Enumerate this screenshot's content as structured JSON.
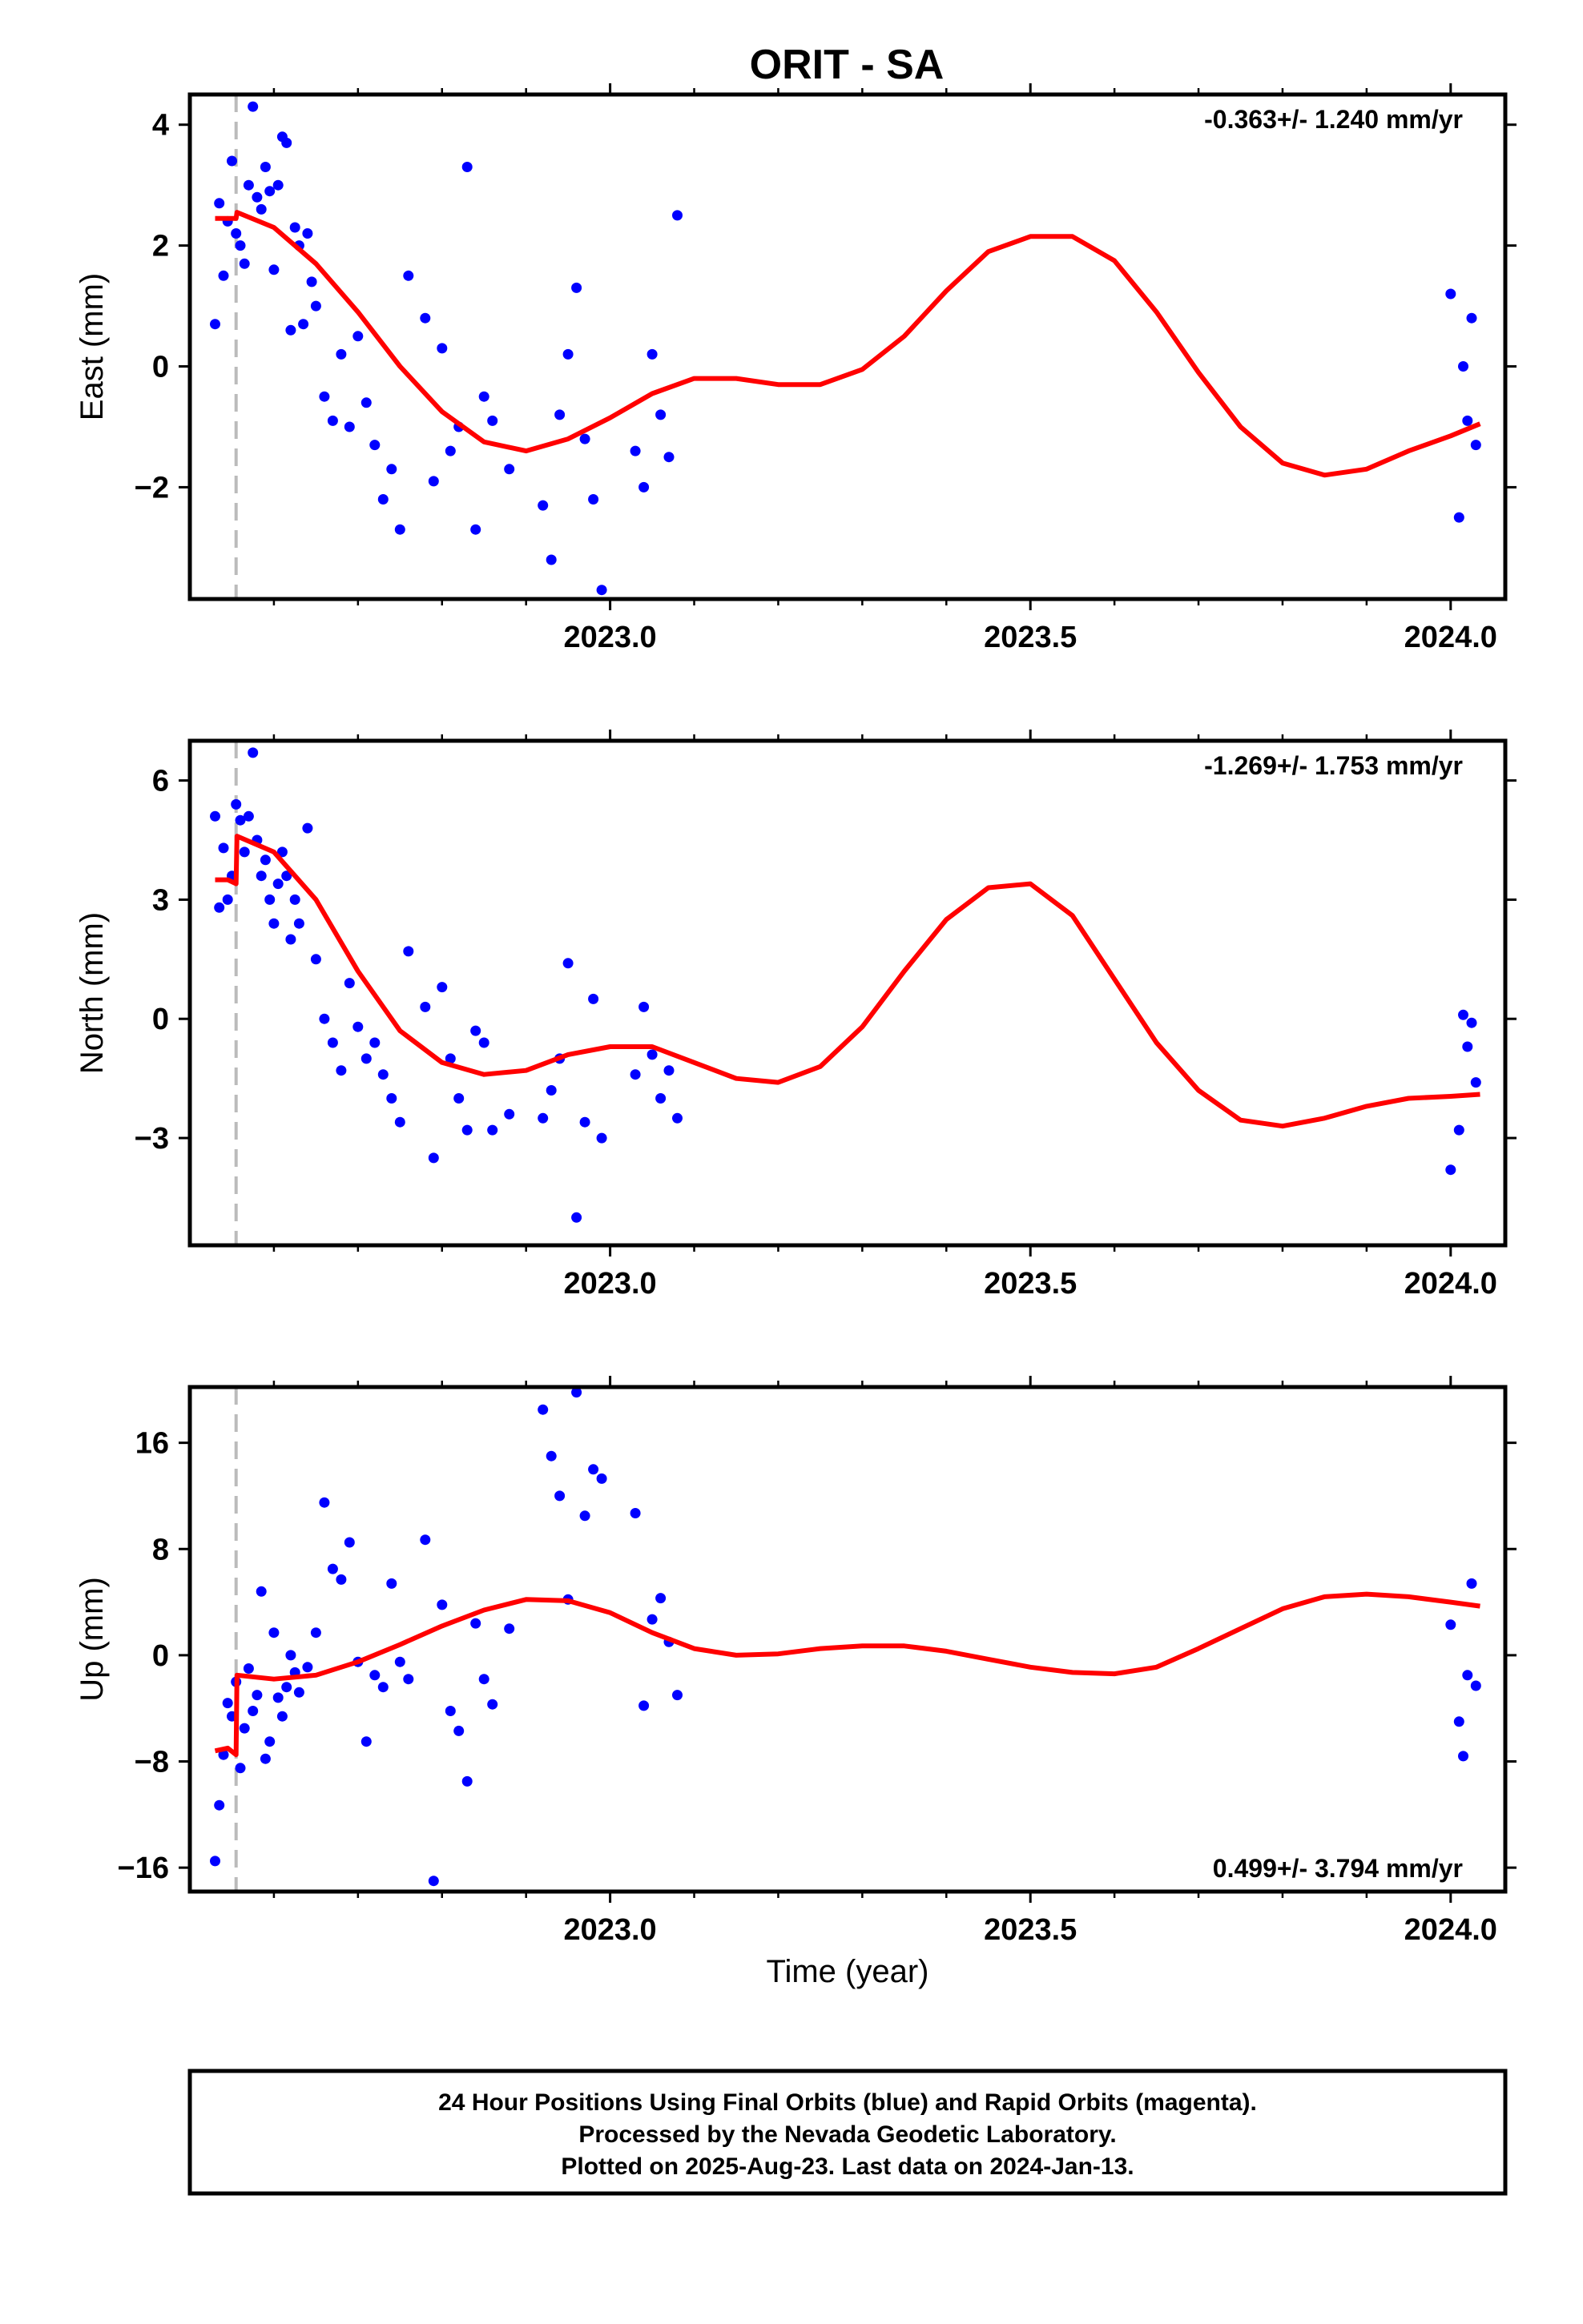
{
  "chart_data": {
    "type": "scatter",
    "title": "ORIT - SA",
    "xlabel": "Time (year)",
    "xlim": [
      2022.5,
      2024.065
    ],
    "x_ticks": [
      "2023.0",
      "2023.5",
      "2024.0"
    ],
    "x_tick_values": [
      2023.0,
      2023.5,
      2024.0
    ],
    "equipment_change_epoch": 2022.555,
    "colors": {
      "points": "#0000ff",
      "model": "#ff0000",
      "dashed": "#bbbbbb",
      "frame": "#000000"
    },
    "footer": [
      "24 Hour Positions Using Final Orbits (blue) and Rapid Orbits (magenta).",
      "Processed by the Nevada Geodetic Laboratory.",
      "Plotted on 2025-Aug-23. Last data on 2024-Jan-13."
    ],
    "panels": [
      {
        "ylabel": "East (mm)",
        "ylim": [
          -3.85,
          4.5
        ],
        "y_ticks": [
          4,
          2,
          0,
          -2
        ],
        "y_tick_labels": [
          "4",
          "2",
          "0",
          "−2"
        ],
        "rate_text": "-0.363+/- 1.240 mm/yr",
        "rate_position": "top-right",
        "series": [
          {
            "name": "Final Orbits",
            "style": "points",
            "x": [
              2022.53,
              2022.535,
              2022.54,
              2022.545,
              2022.55,
              2022.555,
              2022.56,
              2022.565,
              2022.57,
              2022.575,
              2022.58,
              2022.585,
              2022.59,
              2022.595,
              2022.6,
              2022.605,
              2022.61,
              2022.615,
              2022.62,
              2022.625,
              2022.63,
              2022.635,
              2022.64,
              2022.645,
              2022.65,
              2022.66,
              2022.67,
              2022.68,
              2022.69,
              2022.7,
              2022.71,
              2022.72,
              2022.73,
              2022.74,
              2022.75,
              2022.76,
              2022.78,
              2022.79,
              2022.8,
              2022.81,
              2022.82,
              2022.83,
              2022.84,
              2022.85,
              2022.86,
              2022.88,
              2022.92,
              2022.93,
              2022.94,
              2022.95,
              2022.96,
              2022.97,
              2022.98,
              2022.99,
              2023.03,
              2023.04,
              2023.05,
              2023.06,
              2023.07,
              2023.08,
              2024.0,
              2024.01,
              2024.015,
              2024.02,
              2024.025,
              2024.03
            ],
            "y": [
              0.7,
              2.7,
              1.5,
              2.4,
              3.4,
              2.2,
              2.0,
              1.7,
              3.0,
              4.3,
              2.8,
              2.6,
              3.3,
              2.9,
              1.6,
              3.0,
              3.8,
              3.7,
              0.6,
              2.3,
              2.0,
              0.7,
              2.2,
              1.4,
              1.0,
              -0.5,
              -0.9,
              0.2,
              -1.0,
              0.5,
              -0.6,
              -1.3,
              -2.2,
              -1.7,
              -2.7,
              1.5,
              0.8,
              -1.9,
              0.3,
              -1.4,
              -1.0,
              3.3,
              -2.7,
              -0.5,
              -0.9,
              -1.7,
              -2.3,
              -3.2,
              -0.8,
              0.2,
              1.3,
              -1.2,
              -2.2,
              -3.7,
              -1.4,
              -2.0,
              0.2,
              -0.8,
              -1.5,
              2.5,
              1.2,
              -2.5,
              0.0,
              -0.9,
              0.8,
              -1.3
            ]
          },
          {
            "name": "Model",
            "style": "line",
            "x": [
              2022.53,
              2022.555,
              2022.556,
              2022.6,
              2022.65,
              2022.7,
              2022.75,
              2022.8,
              2022.85,
              2022.9,
              2022.95,
              2023.0,
              2023.05,
              2023.1,
              2023.15,
              2023.2,
              2023.25,
              2023.3,
              2023.35,
              2023.4,
              2023.45,
              2023.5,
              2023.55,
              2023.6,
              2023.65,
              2023.7,
              2023.75,
              2023.8,
              2023.85,
              2023.9,
              2023.95,
              2024.0,
              2024.035
            ],
            "y": [
              2.45,
              2.45,
              2.55,
              2.3,
              1.7,
              0.9,
              0.0,
              -0.75,
              -1.25,
              -1.4,
              -1.2,
              -0.85,
              -0.45,
              -0.2,
              -0.2,
              -0.3,
              -0.3,
              -0.05,
              0.5,
              1.25,
              1.9,
              2.15,
              2.15,
              1.75,
              0.9,
              -0.1,
              -1.0,
              -1.6,
              -1.8,
              -1.7,
              -1.4,
              -1.15,
              -0.95
            ]
          }
        ]
      },
      {
        "ylabel": "North (mm)",
        "ylim": [
          -5.7,
          7.0
        ],
        "y_ticks": [
          6,
          3,
          0,
          -3
        ],
        "y_tick_labels": [
          "6",
          "3",
          "0",
          "−3"
        ],
        "rate_text": "-1.269+/- 1.753 mm/yr",
        "rate_position": "top-right",
        "series": [
          {
            "name": "Final Orbits",
            "style": "points",
            "x": [
              2022.53,
              2022.535,
              2022.54,
              2022.545,
              2022.55,
              2022.555,
              2022.56,
              2022.565,
              2022.57,
              2022.575,
              2022.58,
              2022.585,
              2022.59,
              2022.595,
              2022.6,
              2022.605,
              2022.61,
              2022.615,
              2022.62,
              2022.625,
              2022.63,
              2022.64,
              2022.65,
              2022.66,
              2022.67,
              2022.68,
              2022.69,
              2022.7,
              2022.71,
              2022.72,
              2022.73,
              2022.74,
              2022.75,
              2022.76,
              2022.78,
              2022.79,
              2022.8,
              2022.81,
              2022.82,
              2022.83,
              2022.84,
              2022.85,
              2022.86,
              2022.88,
              2022.92,
              2022.93,
              2022.94,
              2022.95,
              2022.96,
              2022.97,
              2022.98,
              2022.99,
              2023.03,
              2023.04,
              2023.05,
              2023.06,
              2023.07,
              2023.08,
              2024.0,
              2024.01,
              2024.015,
              2024.02,
              2024.025,
              2024.03
            ],
            "y": [
              5.1,
              2.8,
              4.3,
              3.0,
              3.6,
              5.4,
              5.0,
              4.2,
              5.1,
              6.7,
              4.5,
              3.6,
              4.0,
              3.0,
              2.4,
              3.4,
              4.2,
              3.6,
              2.0,
              3.0,
              2.4,
              4.8,
              1.5,
              0.0,
              -0.6,
              -1.3,
              0.9,
              -0.2,
              -1.0,
              -0.6,
              -1.4,
              -2.0,
              -2.6,
              1.7,
              0.3,
              -3.5,
              0.8,
              -1.0,
              -2.0,
              -2.8,
              -0.3,
              -0.6,
              -2.8,
              -2.4,
              -2.5,
              -1.8,
              -1.0,
              1.4,
              -5.0,
              -2.6,
              0.5,
              -3.0,
              -1.4,
              0.3,
              -0.9,
              -2.0,
              -1.3,
              -2.5,
              -3.8,
              -2.8,
              0.1,
              -0.7,
              -0.1,
              -1.6
            ]
          },
          {
            "name": "Model",
            "style": "line",
            "x": [
              2022.53,
              2022.545,
              2022.555,
              2022.556,
              2022.6,
              2022.65,
              2022.7,
              2022.75,
              2022.8,
              2022.85,
              2022.9,
              2022.95,
              2023.0,
              2023.05,
              2023.1,
              2023.15,
              2023.2,
              2023.25,
              2023.3,
              2023.35,
              2023.4,
              2023.45,
              2023.5,
              2023.55,
              2023.6,
              2023.65,
              2023.7,
              2023.75,
              2023.8,
              2023.85,
              2023.9,
              2023.95,
              2024.0,
              2024.035
            ],
            "y": [
              3.5,
              3.5,
              3.4,
              4.6,
              4.2,
              3.0,
              1.2,
              -0.3,
              -1.1,
              -1.4,
              -1.3,
              -0.9,
              -0.7,
              -0.7,
              -1.1,
              -1.5,
              -1.6,
              -1.2,
              -0.2,
              1.2,
              2.5,
              3.3,
              3.4,
              2.6,
              1.0,
              -0.6,
              -1.8,
              -2.55,
              -2.7,
              -2.5,
              -2.2,
              -2.0,
              -1.95,
              -1.9
            ]
          }
        ]
      },
      {
        "ylabel": "Up (mm)",
        "ylim": [
          -17.8,
          20.2
        ],
        "y_ticks": [
          16,
          8,
          0,
          -8,
          -16
        ],
        "y_tick_labels": [
          "16",
          "8",
          "0",
          "−8",
          "−16"
        ],
        "rate_text": "0.499+/- 3.794 mm/yr",
        "rate_position": "bottom-right",
        "series": [
          {
            "name": "Final Orbits",
            "style": "points",
            "x": [
              2022.53,
              2022.535,
              2022.54,
              2022.545,
              2022.55,
              2022.555,
              2022.56,
              2022.565,
              2022.57,
              2022.575,
              2022.58,
              2022.585,
              2022.59,
              2022.595,
              2022.6,
              2022.605,
              2022.61,
              2022.615,
              2022.62,
              2022.625,
              2022.63,
              2022.64,
              2022.65,
              2022.66,
              2022.67,
              2022.68,
              2022.69,
              2022.7,
              2022.71,
              2022.72,
              2022.73,
              2022.74,
              2022.75,
              2022.76,
              2022.78,
              2022.79,
              2022.8,
              2022.81,
              2022.82,
              2022.83,
              2022.84,
              2022.85,
              2022.86,
              2022.88,
              2022.92,
              2022.93,
              2022.94,
              2022.95,
              2022.96,
              2022.97,
              2022.98,
              2022.99,
              2023.03,
              2023.04,
              2023.05,
              2023.06,
              2023.07,
              2023.08,
              2024.0,
              2024.01,
              2024.015,
              2024.02,
              2024.025,
              2024.03
            ],
            "y": [
              -15.5,
              -11.3,
              -7.5,
              -3.6,
              -4.6,
              -2.0,
              -8.5,
              -5.5,
              -1.0,
              -4.2,
              -3.0,
              4.8,
              -7.8,
              -6.5,
              1.7,
              -3.2,
              -4.6,
              -2.4,
              0.0,
              -1.3,
              -2.8,
              -0.9,
              1.7,
              11.5,
              6.5,
              5.7,
              8.5,
              -0.5,
              -6.5,
              -1.5,
              -2.4,
              5.4,
              -0.5,
              -1.8,
              8.7,
              -17.0,
              3.8,
              -4.2,
              -5.7,
              -9.5,
              2.4,
              -1.8,
              -3.7,
              2.0,
              18.5,
              15.0,
              12.0,
              4.2,
              19.8,
              10.5,
              14.0,
              13.3,
              10.7,
              -3.8,
              2.7,
              4.3,
              1.0,
              -3.0,
              2.3,
              -5.0,
              -7.6,
              -1.5,
              5.4,
              -2.3
            ]
          },
          {
            "name": "Model",
            "style": "line",
            "x": [
              2022.53,
              2022.545,
              2022.555,
              2022.556,
              2022.6,
              2022.65,
              2022.7,
              2022.75,
              2022.8,
              2022.85,
              2022.9,
              2022.95,
              2023.0,
              2023.05,
              2023.1,
              2023.15,
              2023.2,
              2023.25,
              2023.3,
              2023.35,
              2023.4,
              2023.45,
              2023.5,
              2023.55,
              2023.6,
              2023.65,
              2023.7,
              2023.75,
              2023.8,
              2023.85,
              2023.9,
              2023.95,
              2024.0,
              2024.035
            ],
            "y": [
              -7.2,
              -7.0,
              -7.5,
              -1.5,
              -1.8,
              -1.5,
              -0.5,
              0.8,
              2.2,
              3.4,
              4.2,
              4.1,
              3.2,
              1.7,
              0.5,
              0.0,
              0.1,
              0.5,
              0.7,
              0.7,
              0.3,
              -0.3,
              -0.9,
              -1.3,
              -1.4,
              -0.9,
              0.5,
              2.0,
              3.5,
              4.4,
              4.6,
              4.4,
              4.0,
              3.7
            ]
          }
        ]
      }
    ]
  }
}
